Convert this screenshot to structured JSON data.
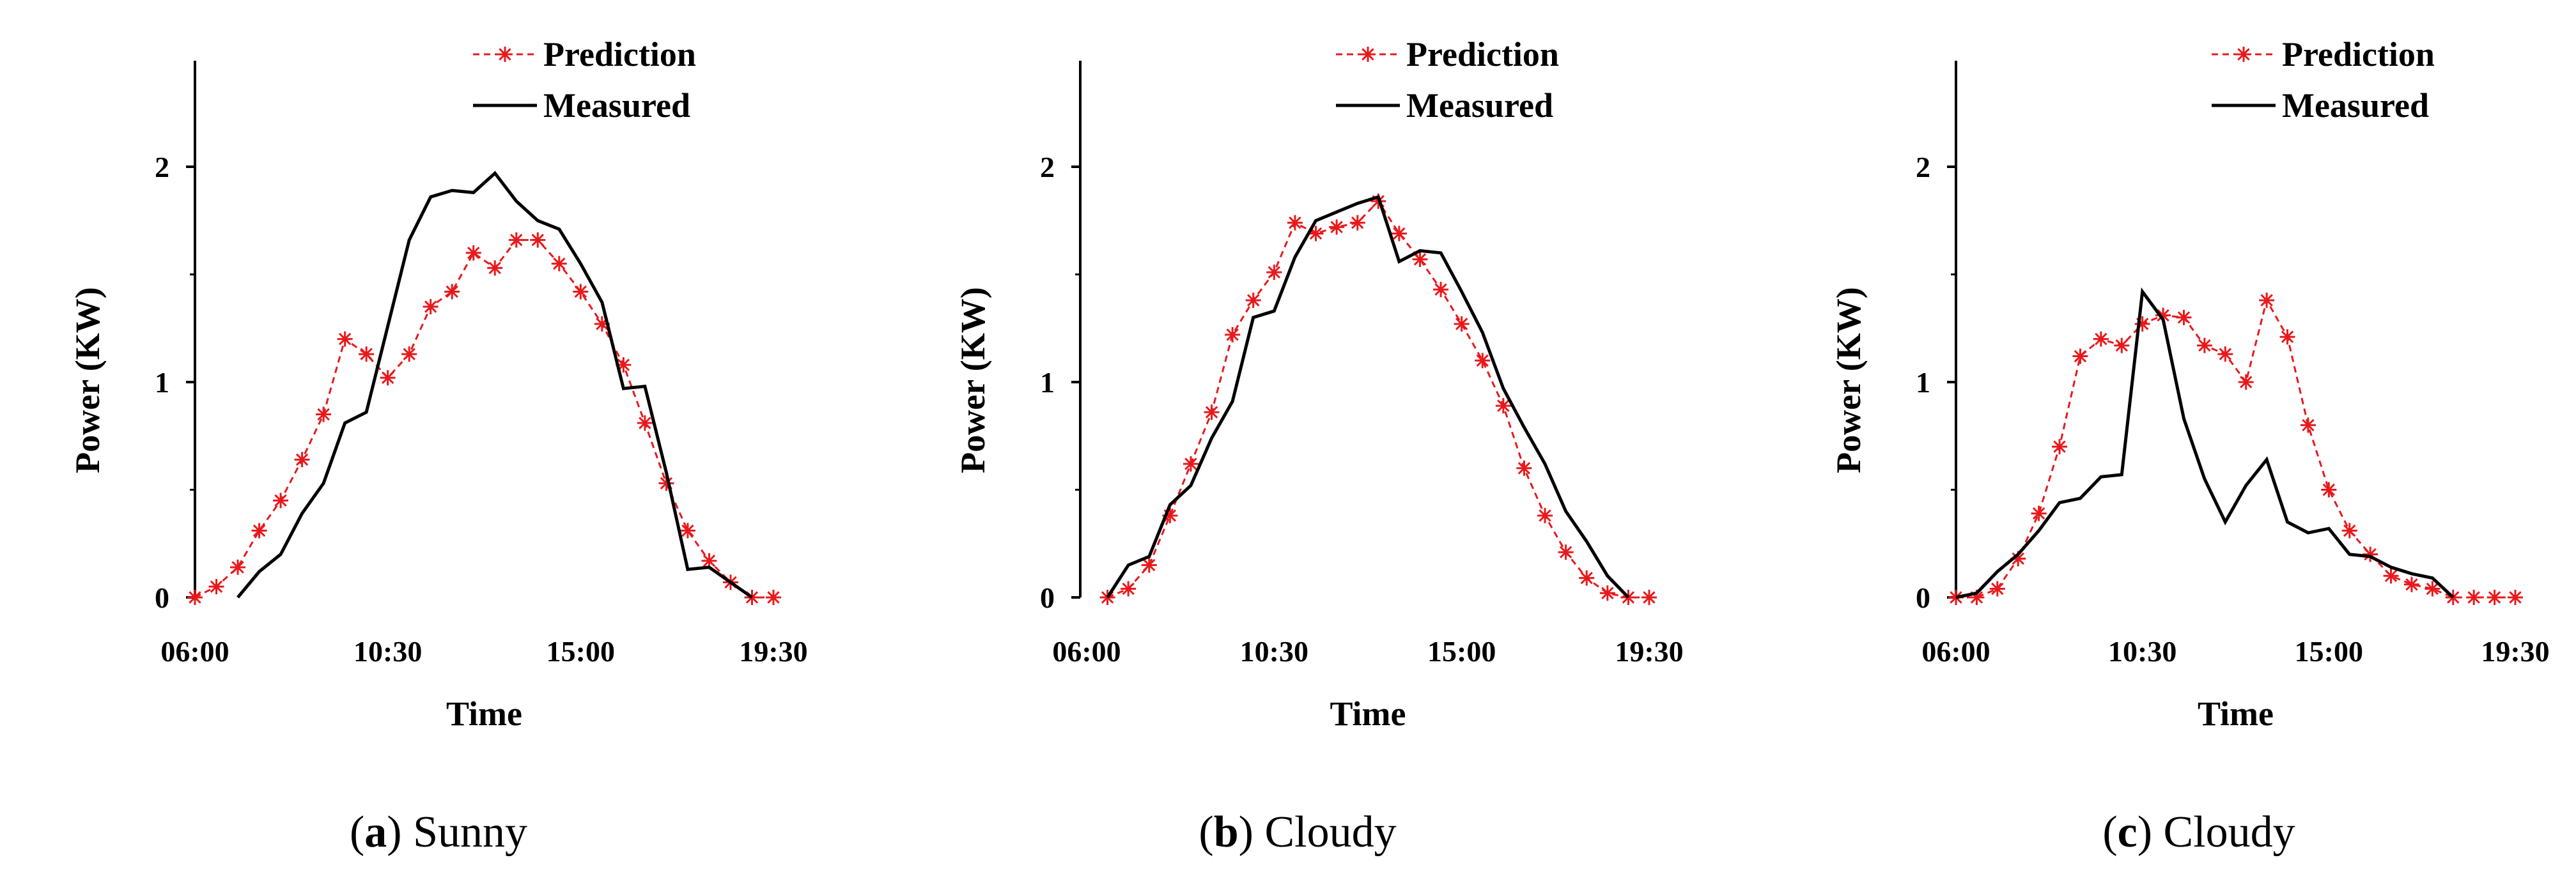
{
  "chart_data": [
    {
      "type": "line",
      "panel_letter": "a",
      "caption": "Sunny",
      "xlabel": "Time",
      "ylabel": "Power (KW)",
      "x": [
        "06:00",
        "06:30",
        "07:00",
        "07:30",
        "08:00",
        "08:30",
        "09:00",
        "09:30",
        "10:00",
        "10:30",
        "11:00",
        "11:30",
        "12:00",
        "12:30",
        "13:00",
        "13:30",
        "14:00",
        "14:30",
        "15:00",
        "15:30",
        "16:00",
        "16:30",
        "17:00",
        "17:30",
        "18:00",
        "18:30",
        "19:00",
        "19:30"
      ],
      "xticks": [
        "06:00",
        "10:30",
        "15:00",
        "19:30"
      ],
      "yticks": [
        "0",
        "1",
        "2"
      ],
      "ylim": [
        0,
        2.5
      ],
      "series": [
        {
          "name": "Prediction",
          "values": [
            0,
            0.05,
            0.14,
            0.31,
            0.45,
            0.64,
            0.85,
            1.2,
            1.13,
            1.02,
            1.13,
            1.35,
            1.42,
            1.6,
            1.53,
            1.66,
            1.66,
            1.55,
            1.42,
            1.27,
            1.08,
            0.81,
            0.53,
            0.31,
            0.17,
            0.07,
            0,
            0
          ],
          "color": "#e8191c"
        },
        {
          "name": "Measured",
          "values": [
            null,
            null,
            0,
            0.12,
            0.2,
            0.39,
            0.53,
            0.81,
            0.86,
            1.26,
            1.66,
            1.86,
            1.89,
            1.88,
            1.97,
            1.84,
            1.75,
            1.71,
            1.55,
            1.37,
            0.97,
            0.98,
            0.58,
            0.13,
            0.14,
            0.07,
            0,
            null
          ],
          "color": "#000000"
        }
      ]
    },
    {
      "type": "line",
      "panel_letter": "b",
      "caption": "Cloudy",
      "xlabel": "Time",
      "ylabel": "Power (KW)",
      "x": [
        "06:00",
        "06:30",
        "07:00",
        "07:30",
        "08:00",
        "08:30",
        "09:00",
        "09:30",
        "10:00",
        "10:30",
        "11:00",
        "11:30",
        "12:00",
        "12:30",
        "13:00",
        "13:30",
        "14:00",
        "14:30",
        "15:00",
        "15:30",
        "16:00",
        "16:30",
        "17:00",
        "17:30",
        "18:00",
        "18:30",
        "19:00",
        "19:30"
      ],
      "xticks": [
        "06:00",
        "10:30",
        "15:00",
        "19:30"
      ],
      "yticks": [
        "0",
        "1",
        "2"
      ],
      "ylim": [
        0,
        2.5
      ],
      "series": [
        {
          "name": "Prediction",
          "values": [
            null,
            0,
            0.04,
            0.15,
            0.38,
            0.62,
            0.86,
            1.22,
            1.38,
            1.51,
            1.74,
            1.69,
            1.72,
            1.74,
            1.84,
            1.69,
            1.57,
            1.43,
            1.27,
            1.1,
            0.89,
            0.6,
            0.38,
            0.21,
            0.09,
            0.02,
            0,
            0
          ],
          "color": "#e8191c"
        },
        {
          "name": "Measured",
          "values": [
            null,
            0,
            0.15,
            0.19,
            0.43,
            0.52,
            0.74,
            0.91,
            1.3,
            1.33,
            1.58,
            1.75,
            1.79,
            1.83,
            1.86,
            1.56,
            1.61,
            1.6,
            1.42,
            1.23,
            0.97,
            0.79,
            0.62,
            0.4,
            0.26,
            0.1,
            0,
            null
          ],
          "color": "#000000"
        }
      ]
    },
    {
      "type": "line",
      "panel_letter": "c",
      "caption": "Cloudy",
      "xlabel": "Time",
      "ylabel": "Power (KW)",
      "x": [
        "06:00",
        "06:30",
        "07:00",
        "07:30",
        "08:00",
        "08:30",
        "09:00",
        "09:30",
        "10:00",
        "10:30",
        "11:00",
        "11:30",
        "12:00",
        "12:30",
        "13:00",
        "13:30",
        "14:00",
        "14:30",
        "15:00",
        "15:30",
        "16:00",
        "16:30",
        "17:00",
        "17:30",
        "18:00",
        "18:30",
        "19:00",
        "19:30"
      ],
      "xticks": [
        "06:00",
        "10:30",
        "15:00",
        "19:30"
      ],
      "yticks": [
        "0",
        "1",
        "2"
      ],
      "ylim": [
        0,
        2.5
      ],
      "series": [
        {
          "name": "Prediction",
          "values": [
            0,
            0,
            0.04,
            0.18,
            0.39,
            0.7,
            1.12,
            1.2,
            1.17,
            1.27,
            1.31,
            1.3,
            1.17,
            1.13,
            1,
            1.38,
            1.21,
            0.8,
            0.5,
            0.31,
            0.2,
            0.1,
            0.06,
            0.04,
            0,
            0,
            0,
            0
          ],
          "color": "#e8191c"
        },
        {
          "name": "Measured",
          "values": [
            0,
            0.02,
            0.12,
            0.2,
            0.31,
            0.44,
            0.46,
            0.56,
            0.57,
            1.42,
            1.29,
            0.83,
            0.55,
            0.35,
            0.52,
            0.64,
            0.35,
            0.3,
            0.32,
            0.2,
            0.19,
            0.14,
            0.11,
            0.09,
            0,
            null,
            null,
            null
          ],
          "color": "#000000"
        }
      ]
    }
  ]
}
